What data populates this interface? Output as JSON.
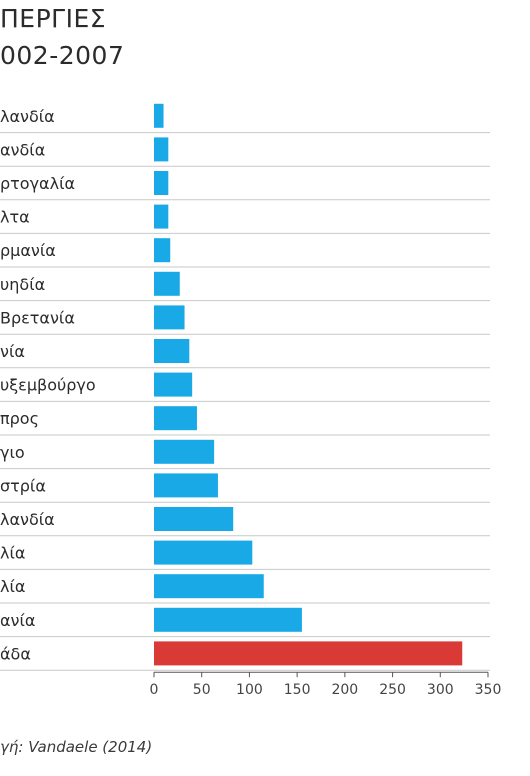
{
  "chart_data": {
    "type": "bar",
    "orientation": "horizontal",
    "title_line1": "ΠΕΡΓΙΕΣ",
    "title_line2": "002-2007",
    "source": "γή: Vandaele (2014)",
    "categories": [
      "λανδία",
      "ανδία",
      "ρτογαλία",
      "λτα",
      "ρμανία",
      "υηδία",
      "Βρετανία",
      "νία",
      "υξεμβούργο",
      "προς",
      "γιο",
      "στρία",
      "λανδία",
      "λία",
      "λία",
      "ανία",
      "άδα"
    ],
    "values": [
      10,
      15,
      15,
      15,
      17,
      27,
      32,
      37,
      40,
      45,
      63,
      67,
      83,
      103,
      115,
      155,
      323
    ],
    "highlight_index": 16,
    "xlim": [
      0,
      350
    ],
    "xticks": [
      0,
      50,
      100,
      150,
      200,
      250,
      300,
      350
    ],
    "colors": {
      "bar": "#18a9e6",
      "highlight": "#d93a36",
      "separator": "#c9c9c9",
      "axis": "#555555"
    }
  }
}
